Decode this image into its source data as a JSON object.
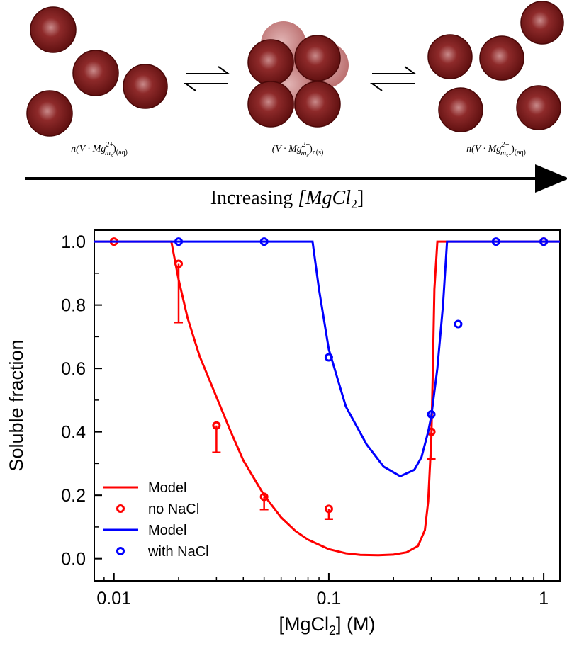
{
  "schematic": {
    "states": [
      {
        "pieces": [
          "n(V · Mg",
          "2+",
          "m",
          "s",
          ")",
          "(aq)"
        ]
      },
      {
        "pieces": [
          "(V · Mg",
          "2+",
          "m",
          "c",
          ")",
          "n(s)"
        ]
      },
      {
        "pieces": [
          "n(V · Mg",
          "2+",
          "m",
          "s*",
          ")",
          "(aq)"
        ]
      }
    ],
    "arrow_label": [
      "Increasing ",
      "[MgCl",
      "2",
      "]"
    ]
  },
  "chart_data": {
    "type": "line",
    "xlabel": [
      "[MgCl",
      "2",
      "] (M)"
    ],
    "ylabel": "Soluble fraction",
    "xscale": "log",
    "xlim": [
      0.0081,
      1.19
    ],
    "xticks": [
      0.01,
      0.1,
      1
    ],
    "ylim": [
      -0.07,
      1.036
    ],
    "yticks": [
      {
        "value": 0,
        "label": "0.0"
      },
      {
        "value": 0.2,
        "label": "0.2"
      },
      {
        "value": 0.4,
        "label": "0.4"
      },
      {
        "value": 0.6,
        "label": "0.6"
      },
      {
        "value": 0.8,
        "label": "0.8"
      },
      {
        "value": 1,
        "label": "1.0"
      }
    ],
    "legend": "lower left",
    "series": [
      {
        "name": "Model",
        "color": "#ff0000",
        "mode": "line",
        "x": [
          0.0081,
          0.0185,
          0.02,
          0.022,
          0.025,
          0.03,
          0.035,
          0.04,
          0.05,
          0.06,
          0.07,
          0.08,
          0.1,
          0.12,
          0.14,
          0.17,
          0.2,
          0.23,
          0.26,
          0.28,
          0.29,
          0.3,
          0.305,
          0.31,
          0.32,
          1.19
        ],
        "values": [
          1,
          1,
          0.88,
          0.76,
          0.64,
          0.51,
          0.4,
          0.31,
          0.2,
          0.13,
          0.087,
          0.06,
          0.03,
          0.017,
          0.012,
          0.011,
          0.013,
          0.02,
          0.04,
          0.09,
          0.18,
          0.38,
          0.6,
          0.85,
          1,
          1
        ]
      },
      {
        "name": "no NaCl",
        "color": "#ff0000",
        "mode": "markers",
        "x": [
          0.01,
          0.02,
          0.03,
          0.05,
          0.1,
          0.3,
          1
        ],
        "values": [
          1,
          0.93,
          0.42,
          0.195,
          0.157,
          0.4,
          1
        ],
        "errors": [
          0,
          0.185,
          0.085,
          0.04,
          0.032,
          0.085,
          0
        ]
      },
      {
        "name": "Model",
        "color": "#0000ff",
        "mode": "line",
        "x": [
          0.0081,
          0.084,
          0.09,
          0.1,
          0.12,
          0.15,
          0.18,
          0.215,
          0.25,
          0.27,
          0.29,
          0.3,
          0.32,
          0.34,
          0.355,
          1.19
        ],
        "values": [
          1,
          1,
          0.85,
          0.66,
          0.48,
          0.36,
          0.29,
          0.26,
          0.28,
          0.32,
          0.4,
          0.45,
          0.6,
          0.8,
          1,
          1
        ]
      },
      {
        "name": "with NaCl",
        "color": "#0000ff",
        "mode": "markers",
        "x": [
          0.02,
          0.05,
          0.1,
          0.3,
          0.4,
          0.6,
          1
        ],
        "values": [
          1,
          1,
          0.635,
          0.455,
          0.74,
          1,
          1
        ]
      }
    ]
  }
}
